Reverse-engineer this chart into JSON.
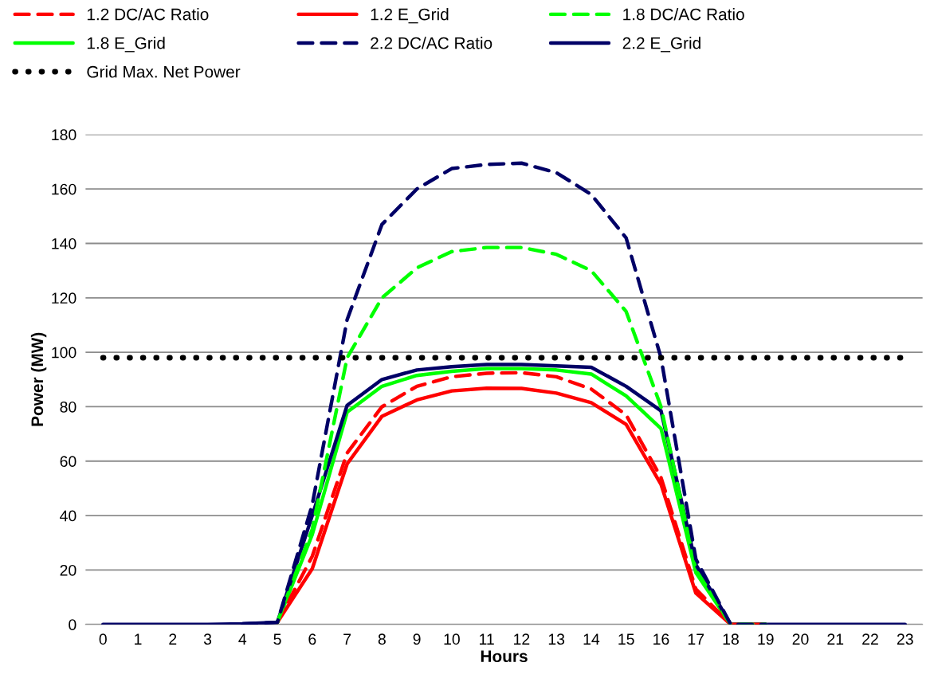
{
  "chart_data": {
    "type": "line",
    "xlabel": "Hours",
    "ylabel": "Power (MW)",
    "x": [
      0,
      1,
      2,
      3,
      4,
      5,
      6,
      7,
      8,
      9,
      10,
      11,
      12,
      13,
      14,
      15,
      16,
      17,
      18,
      19,
      20,
      21,
      22,
      23
    ],
    "xlim": [
      -0.5,
      23.5
    ],
    "xticks": [
      0,
      1,
      2,
      3,
      4,
      5,
      6,
      7,
      8,
      9,
      10,
      11,
      12,
      13,
      14,
      15,
      16,
      17,
      18,
      19,
      20,
      21,
      22,
      23
    ],
    "ylim": [
      0,
      180
    ],
    "yticks": [
      0,
      20,
      40,
      60,
      80,
      100,
      120,
      140,
      160,
      180
    ],
    "grid": "y",
    "legend": "top",
    "marker": "none",
    "series": [
      {
        "name": "1.2 DC/AC Ratio",
        "color": "#ff0000",
        "line_style": "dashed",
        "values": [
          null,
          null,
          null,
          null,
          null,
          0.8,
          25,
          63,
          80,
          87.5,
          91,
          92.3,
          92.5,
          91,
          86.5,
          77,
          54,
          13,
          0,
          0,
          null,
          null,
          null,
          null
        ]
      },
      {
        "name": "1.2 E_Grid",
        "color": "#ff0000",
        "line_style": "solid",
        "values": [
          null,
          null,
          null,
          null,
          null,
          0.8,
          20.5,
          59,
          76.5,
          82.5,
          85.8,
          86.8,
          86.7,
          85,
          81.5,
          73.5,
          51.5,
          11.5,
          0,
          0,
          null,
          null,
          null,
          null
        ]
      },
      {
        "name": "1.8 DC/AC Ratio",
        "color": "#00ff00",
        "line_style": "dashed",
        "values": [
          null,
          null,
          null,
          null,
          null,
          0.8,
          35,
          98,
          120,
          131,
          137,
          138.5,
          138.5,
          136,
          130,
          115,
          80,
          20,
          0,
          0,
          null,
          null,
          null,
          null
        ]
      },
      {
        "name": "1.8 E_Grid",
        "color": "#00ff00",
        "line_style": "solid",
        "values": [
          null,
          null,
          null,
          null,
          null,
          0.8,
          33,
          78,
          87.5,
          91.5,
          93,
          94,
          94,
          93.5,
          92,
          84,
          72,
          19,
          0,
          0,
          null,
          null,
          null,
          null
        ]
      },
      {
        "name": "2.2 DC/AC Ratio",
        "color": "#000066",
        "line_style": "dashed",
        "values": [
          null,
          null,
          null,
          null,
          0.2,
          0.8,
          44,
          112,
          147,
          160,
          167.5,
          169,
          169.5,
          166,
          158,
          142,
          98,
          24,
          0,
          0,
          null,
          null,
          null,
          null
        ]
      },
      {
        "name": "2.2 E_Grid",
        "color": "#000066",
        "line_style": "solid",
        "values": [
          0,
          0,
          0,
          0,
          0.2,
          0.8,
          40,
          80.5,
          90,
          93.5,
          94.7,
          95.5,
          95.5,
          95,
          94.5,
          87.5,
          78.5,
          22,
          0,
          0,
          0,
          0,
          0,
          0
        ]
      },
      {
        "name": "Grid Max. Net Power",
        "color": "#000000",
        "line_style": "dotted",
        "values": [
          98,
          98,
          98,
          98,
          98,
          98,
          98,
          98,
          98,
          98,
          98,
          98,
          98,
          98,
          98,
          98,
          98,
          98,
          98,
          98,
          98,
          98,
          98,
          98
        ]
      }
    ]
  }
}
